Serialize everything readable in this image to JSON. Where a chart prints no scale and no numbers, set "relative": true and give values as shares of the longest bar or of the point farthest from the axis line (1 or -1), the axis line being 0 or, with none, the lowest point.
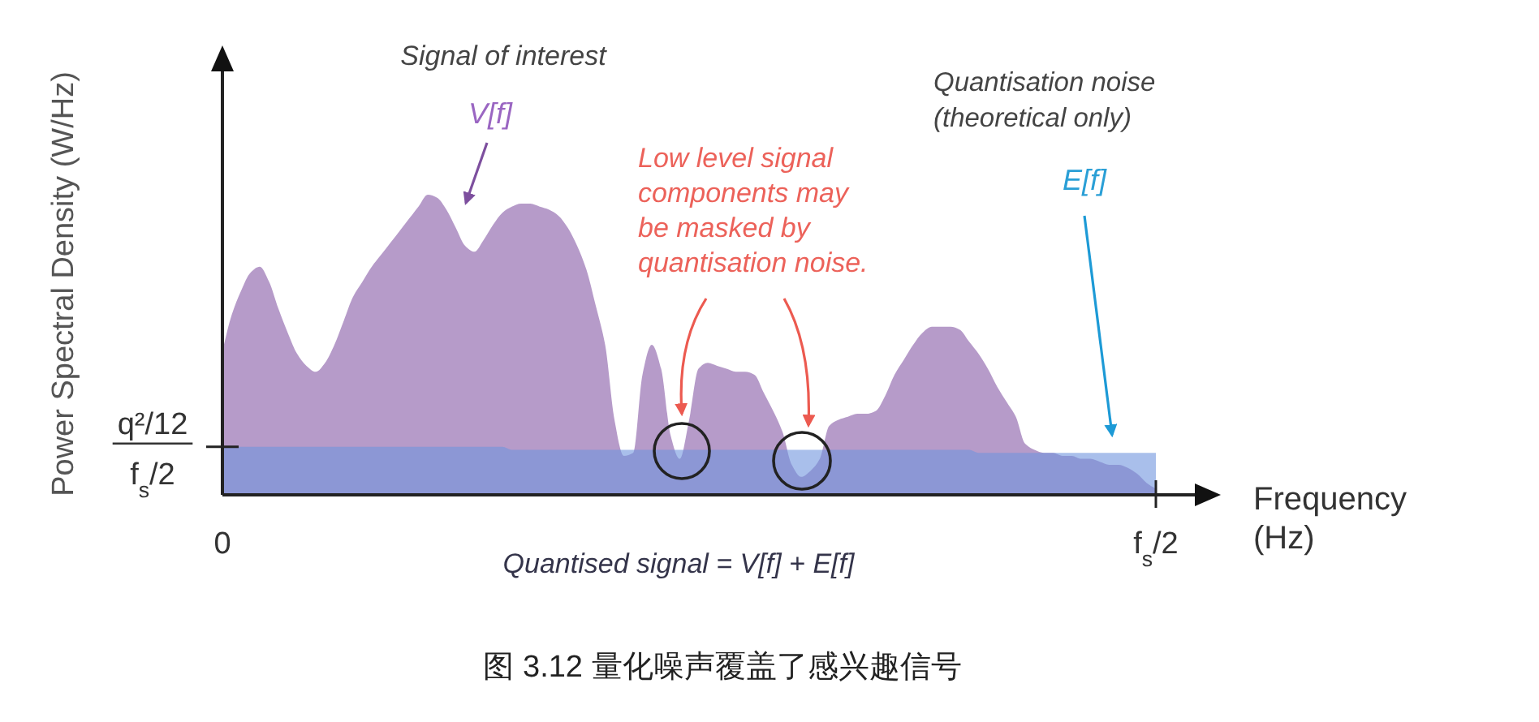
{
  "chart_data": {
    "type": "area",
    "relative": true,
    "xlabel": "Frequency (Hz)",
    "ylabel": "Power Spectral Density (W/Hz)",
    "categories": [
      "0",
      null,
      null,
      null,
      null,
      null,
      null,
      null,
      null,
      null,
      null,
      null,
      null,
      null,
      null,
      null,
      null,
      null,
      null,
      null,
      null,
      null,
      null,
      null,
      null,
      null,
      null,
      null,
      null,
      null,
      null,
      null,
      null,
      null,
      null,
      null,
      null,
      null,
      null,
      null,
      null,
      null,
      null,
      null,
      null,
      null,
      null,
      null,
      null,
      null,
      null,
      null,
      null,
      null,
      null,
      null,
      null,
      null,
      null,
      null,
      null,
      null,
      null,
      null,
      null,
      null,
      null,
      null,
      null,
      null,
      null,
      null,
      null,
      null,
      null,
      null,
      null,
      null,
      null,
      null,
      null,
      null,
      null,
      null,
      null,
      null,
      null,
      null,
      null,
      null,
      null,
      null,
      null,
      null,
      null,
      null,
      null,
      null,
      null,
      null,
      "f$_{s}$/2"
    ],
    "series": [
      {
        "name": "V[f]",
        "color": "#b69bc9",
        "values": [
          0.48,
          0.6,
          0.68,
          0.74,
          0.76,
          0.71,
          0.62,
          0.54,
          0.47,
          0.43,
          0.41,
          0.44,
          0.5,
          0.58,
          0.66,
          0.71,
          0.76,
          0.8,
          0.84,
          0.88,
          0.92,
          0.96,
          1,
          0.99,
          0.95,
          0.89,
          0.83,
          0.81,
          0.85,
          0.9,
          0.94,
          0.96,
          0.97,
          0.97,
          0.96,
          0.95,
          0.93,
          0.89,
          0.83,
          0.75,
          0.63,
          0.5,
          0.25,
          0.13,
          0.14,
          0.4,
          0.5,
          0.42,
          0.2,
          0.12,
          0.25,
          0.42,
          0.44,
          0.43,
          0.42,
          0.41,
          0.41,
          0.4,
          0.34,
          0.28,
          0.21,
          0.1,
          0.06,
          0.08,
          0.12,
          0.23,
          0.25,
          0.26,
          0.27,
          0.27,
          0.28,
          0.33,
          0.4,
          0.45,
          0.5,
          0.54,
          0.56,
          0.56,
          0.56,
          0.55,
          0.51,
          0.47,
          0.42,
          0.36,
          0.31,
          0.26,
          0.17,
          0.15,
          0.14,
          0.14,
          0.13,
          0.13,
          0.12,
          0.12,
          0.11,
          0.1,
          0.1,
          0.09,
          0.07,
          0.04,
          0.02
        ]
      },
      {
        "name": "E[f]",
        "color": "#6f95dd",
        "values": [
          0.16,
          0.16,
          0.16,
          0.16,
          0.16,
          0.16,
          0.16,
          0.16,
          0.16,
          0.16,
          0.16,
          0.16,
          0.16,
          0.16,
          0.16,
          0.16,
          0.16,
          0.16,
          0.16,
          0.16,
          0.16,
          0.16,
          0.16,
          0.16,
          0.16,
          0.16,
          0.16,
          0.16,
          0.16,
          0.16,
          0.16,
          0.15,
          0.15,
          0.15,
          0.15,
          0.15,
          0.15,
          0.15,
          0.15,
          0.15,
          0.15,
          0.15,
          0.15,
          0.15,
          0.15,
          0.15,
          0.15,
          0.15,
          0.15,
          0.15,
          0.15,
          0.15,
          0.15,
          0.15,
          0.15,
          0.15,
          0.15,
          0.15,
          0.15,
          0.15,
          0.15,
          0.15,
          0.15,
          0.15,
          0.15,
          0.15,
          0.15,
          0.15,
          0.15,
          0.15,
          0.15,
          0.15,
          0.15,
          0.15,
          0.15,
          0.15,
          0.15,
          0.15,
          0.15,
          0.15,
          0.15,
          0.14,
          0.14,
          0.14,
          0.14,
          0.14,
          0.14,
          0.14,
          0.14,
          0.14,
          0.14,
          0.14,
          0.14,
          0.14,
          0.14,
          0.14,
          0.14,
          0.14,
          0.14,
          0.14,
          0.14
        ]
      }
    ],
    "ref_lines": [
      {
        "axis": "y",
        "value": 0.16,
        "label": "q²/12\nf$_{s}$/2"
      }
    ],
    "annotations": [
      "Signal of interest",
      "Low level signal\ncomponents may\nbe masked by\nquantisation noise.",
      "Quantisation noise (theoretical only)",
      "Quantised signal = V[f] + E[f]",
      "图 3.12 量化噪声覆盖了感兴趣信号"
    ]
  }
}
